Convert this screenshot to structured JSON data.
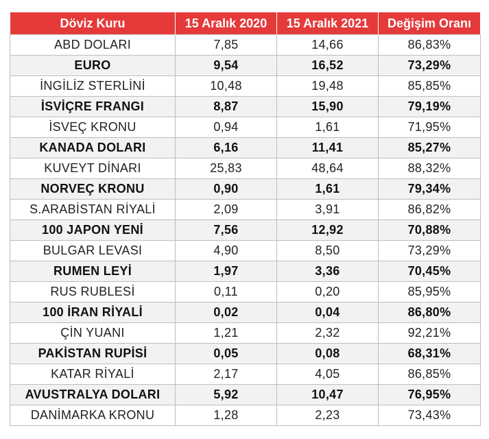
{
  "header": {
    "col_currency": "Döviz Kuru",
    "col_2020": "15 Aralık 2020",
    "col_2021": "15 Aralık 2021",
    "col_change": "Değişim Oranı"
  },
  "rows": [
    {
      "currency": "ABD DOLARI",
      "v2020": "7,85",
      "v2021": "14,66",
      "change": "86,83%",
      "bold": false
    },
    {
      "currency": "EURO",
      "v2020": "9,54",
      "v2021": "16,52",
      "change": "73,29%",
      "bold": true
    },
    {
      "currency": "İNGİLİZ STERLİNİ",
      "v2020": "10,48",
      "v2021": "19,48",
      "change": "85,85%",
      "bold": false
    },
    {
      "currency": "İSVİÇRE FRANGI",
      "v2020": "8,87",
      "v2021": "15,90",
      "change": "79,19%",
      "bold": true
    },
    {
      "currency": "İSVEÇ KRONU",
      "v2020": "0,94",
      "v2021": "1,61",
      "change": "71,95%",
      "bold": false
    },
    {
      "currency": "KANADA DOLARI",
      "v2020": "6,16",
      "v2021": "11,41",
      "change": "85,27%",
      "bold": true
    },
    {
      "currency": "KUVEYT DİNARI",
      "v2020": "25,83",
      "v2021": "48,64",
      "change": "88,32%",
      "bold": false
    },
    {
      "currency": "NORVEÇ KRONU",
      "v2020": "0,90",
      "v2021": "1,61",
      "change": "79,34%",
      "bold": true
    },
    {
      "currency": "S.ARABİSTAN RİYALİ",
      "v2020": "2,09",
      "v2021": "3,91",
      "change": "86,82%",
      "bold": false
    },
    {
      "currency": "100 JAPON YENİ",
      "v2020": "7,56",
      "v2021": "12,92",
      "change": "70,88%",
      "bold": true
    },
    {
      "currency": "BULGAR LEVASI",
      "v2020": "4,90",
      "v2021": "8,50",
      "change": "73,29%",
      "bold": false
    },
    {
      "currency": "RUMEN LEYİ",
      "v2020": "1,97",
      "v2021": "3,36",
      "change": "70,45%",
      "bold": true
    },
    {
      "currency": "RUS RUBLESİ",
      "v2020": "0,11",
      "v2021": "0,20",
      "change": "85,95%",
      "bold": false
    },
    {
      "currency": "100 İRAN RİYALİ",
      "v2020": "0,02",
      "v2021": "0,04",
      "change": "86,80%",
      "bold": true
    },
    {
      "currency": "ÇİN YUANI",
      "v2020": "1,21",
      "v2021": "2,32",
      "change": "92,21%",
      "bold": false
    },
    {
      "currency": "PAKİSTAN RUPİSİ",
      "v2020": "0,05",
      "v2021": "0,08",
      "change": "68,31%",
      "bold": true
    },
    {
      "currency": "KATAR RİYALİ",
      "v2020": "2,17",
      "v2021": "4,05",
      "change": "86,85%",
      "bold": false
    },
    {
      "currency": "AVUSTRALYA DOLARI",
      "v2020": "5,92",
      "v2021": "10,47",
      "change": "76,95%",
      "bold": true
    },
    {
      "currency": "DANİMARKA KRONU",
      "v2020": "1,28",
      "v2021": "2,23",
      "change": "73,43%",
      "bold": false
    }
  ],
  "colors": {
    "header_bg": "#e53a3a",
    "header_text": "#ffffff",
    "shaded_row_bg": "#f2f2f2",
    "border": "#bdbdbd"
  }
}
